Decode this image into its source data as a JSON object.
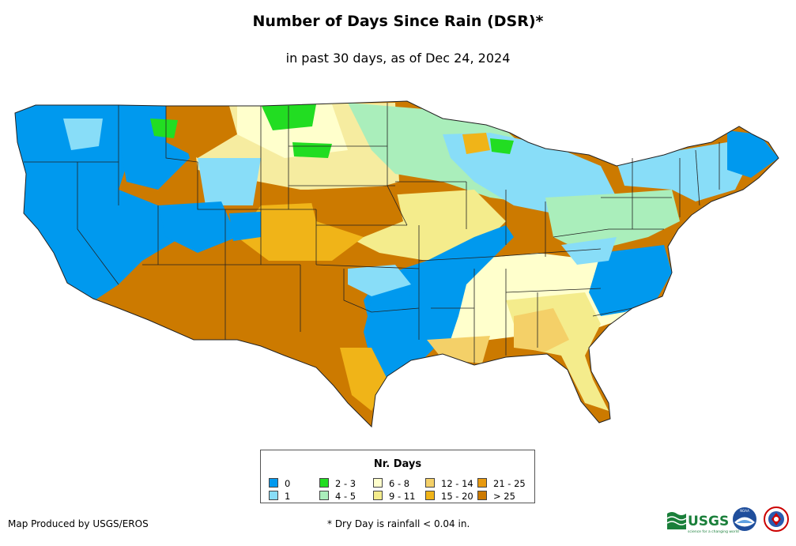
{
  "header": {
    "title": "Number of Days Since Rain (DSR)*",
    "subtitle": "in past 30 days, as of Dec 24, 2024"
  },
  "legend": {
    "title": "Nr. Days",
    "items": [
      {
        "label": "0",
        "color": "#0099ee"
      },
      {
        "label": "1",
        "color": "#88ddf8"
      },
      {
        "label": "2 - 3",
        "color": "#22dd22"
      },
      {
        "label": "4 - 5",
        "color": "#aaeebb"
      },
      {
        "label": "6 - 8",
        "color": "#ffffcc"
      },
      {
        "label": "9 - 11",
        "color": "#f4ec8c"
      },
      {
        "label": "12 - 14",
        "color": "#f4d068"
      },
      {
        "label": "15 - 20",
        "color": "#f0b418"
      },
      {
        "label": "21 - 25",
        "color": "#e89a10"
      },
      {
        "label": "> 25",
        "color": "#cc7a00"
      }
    ]
  },
  "footer": {
    "credit": "Map Produced by USGS/EROS",
    "footnote": "* Dry Day is rainfall < 0.04 in.",
    "usgs_logo_text": "USGS",
    "usgs_tagline": "science for a changing world",
    "noaa_logo_text": "NOAA"
  }
}
